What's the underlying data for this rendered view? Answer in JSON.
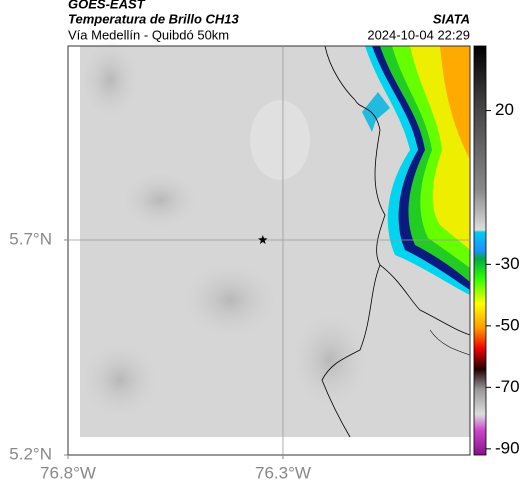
{
  "header": {
    "source": "GOES-EAST",
    "title": "Temperatura de Brillo CH13",
    "subtitle": "Vía Medellín - Quibdó 50km",
    "brand": "SIATA",
    "datetime": "2024-10-04 22:29"
  },
  "map": {
    "xlim": [
      -76.8,
      -75.865
    ],
    "ylim": [
      5.2,
      6.151
    ],
    "xticks": [
      {
        "value": -76.8,
        "label": "76.8°W"
      },
      {
        "value": -76.3,
        "label": "76.3°W"
      }
    ],
    "yticks": [
      {
        "value": 5.2,
        "label": "5.2°N"
      },
      {
        "value": 5.7,
        "label": "5.7°N"
      }
    ],
    "grid_lon": [
      -76.3
    ],
    "grid_lat": [
      5.7
    ],
    "marker": {
      "lon": -76.347,
      "lat": 5.7
    }
  },
  "colorbar": {
    "lim": [
      -92,
      41
    ],
    "ticks": [
      20,
      -30,
      -50,
      -70,
      -90
    ]
  }
}
